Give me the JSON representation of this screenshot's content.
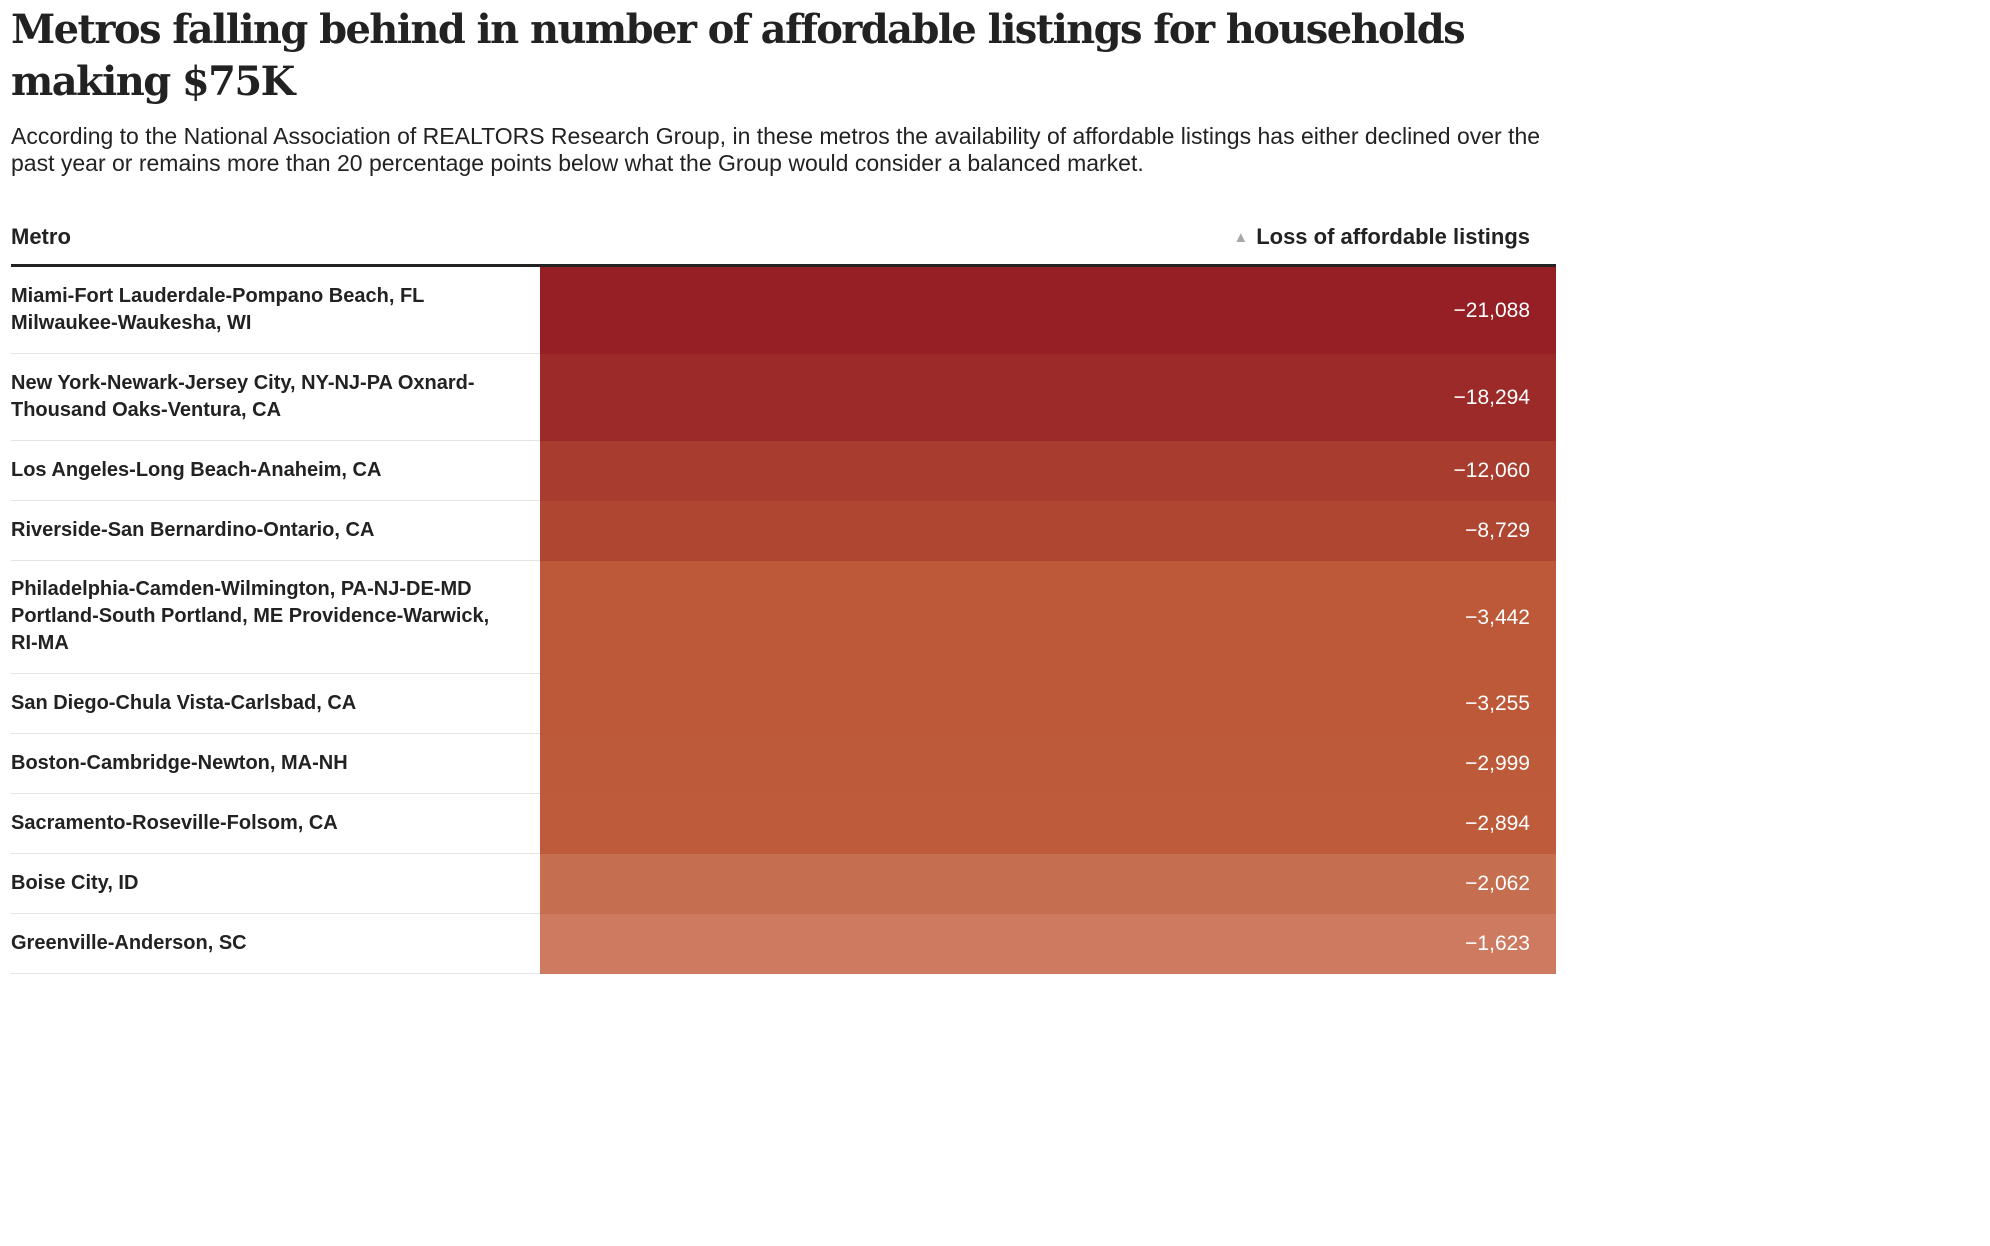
{
  "title": "Metros falling behind in number of affordable listings for households making $75K",
  "subtitle": "According to the National Association of REALTORS Research Group, in these metros the availability of affordable listings has either declined over the past year or remains more than 20 percentage points below what the Group would consider a balanced market.",
  "columns": {
    "metro": "Metro",
    "loss": "Loss of affordable listings",
    "sort_icon": "sort-ascending-triangle-icon"
  },
  "colors": {
    "text": "#222222",
    "rule": "#222222",
    "divider": "#e4e4e4",
    "sort_icon": "#a8a8a8",
    "value_text": "#ffffff",
    "scale_dark": "#951f25",
    "scale_light": "#cd7a60"
  },
  "chart_data": {
    "type": "table",
    "title": "Metros falling behind in number of affordable listings for households making $75K",
    "columns": [
      "Metro",
      "Loss of affordable listings"
    ],
    "sort": {
      "column": "Loss of affordable listings",
      "direction": "ascending"
    },
    "rows": [
      {
        "metro": "Miami-Fort Lauderdale-Pompano Beach, FL\nMilwaukee-Waukesha, WI",
        "loss": "−21,088",
        "value": -21088,
        "color": "#951f25"
      },
      {
        "metro": "New York-Newark-Jersey City, NY-NJ-PA Oxnard-\nThousand Oaks-Ventura, CA",
        "loss": "−18,294",
        "value": -18294,
        "color": "#9b2a28"
      },
      {
        "metro": "Los Angeles-Long Beach-Anaheim, CA",
        "loss": "−12,060",
        "value": -12060,
        "color": "#a83c2e"
      },
      {
        "metro": "Riverside-San Bernardino-Ontario, CA",
        "loss": "−8,729",
        "value": -8729,
        "color": "#af4632"
      },
      {
        "metro": "Philadelphia-Camden-Wilmington, PA-NJ-DE-MD\nPortland-South Portland, ME Providence-Warwick,\nRI-MA",
        "loss": "−3,442",
        "value": -3442,
        "color": "#bd5939"
      },
      {
        "metro": "San Diego-Chula Vista-Carlsbad, CA",
        "loss": "−3,255",
        "value": -3255,
        "color": "#bd5939"
      },
      {
        "metro": "Boston-Cambridge-Newton, MA-NH",
        "loss": "−2,999",
        "value": -2999,
        "color": "#bd5a3a"
      },
      {
        "metro": "Sacramento-Roseville-Folsom, CA",
        "loss": "−2,894",
        "value": -2894,
        "color": "#be5b3b"
      },
      {
        "metro": "Boise City, ID",
        "loss": "−2,062",
        "value": -2062,
        "color": "#c66e50"
      },
      {
        "metro": "Greenville-Anderson, SC",
        "loss": "−1,623",
        "value": -1623,
        "color": "#cd7a60"
      }
    ]
  }
}
